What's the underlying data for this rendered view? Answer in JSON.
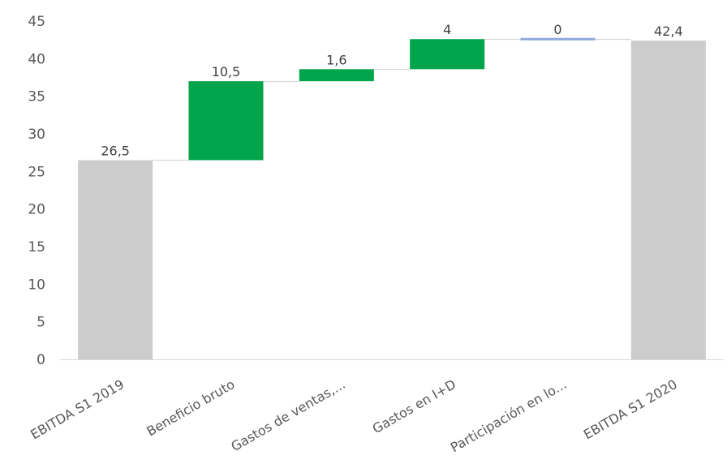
{
  "chart_data": {
    "type": "bar",
    "subtype": "waterfall",
    "title": "",
    "xlabel": "",
    "ylabel": "",
    "ylim": [
      0,
      45
    ],
    "yticks": [
      0,
      5,
      10,
      15,
      20,
      25,
      30,
      35,
      40,
      45
    ],
    "grid": false,
    "legend": "none",
    "categories": [
      "EBITDA S1 2019",
      "Beneficio bruto",
      "Gastos de ventas,...",
      "Gastos en I+D",
      "Participación en lo...",
      "EBITDA S1 2020"
    ],
    "values": [
      26.5,
      10.5,
      1.6,
      4,
      0,
      42.4
    ],
    "bar_kind": [
      "total",
      "increase",
      "increase",
      "increase",
      "increase",
      "total"
    ],
    "data_labels": [
      "26,5",
      "10,5",
      "1,6",
      "4",
      "0",
      "42,4"
    ],
    "colors": {
      "total": "#cccccc",
      "increase": "#00a44a",
      "zero": "#8eaadb",
      "connector": "#d9d9d9",
      "axis": "#d9d9d9"
    }
  }
}
